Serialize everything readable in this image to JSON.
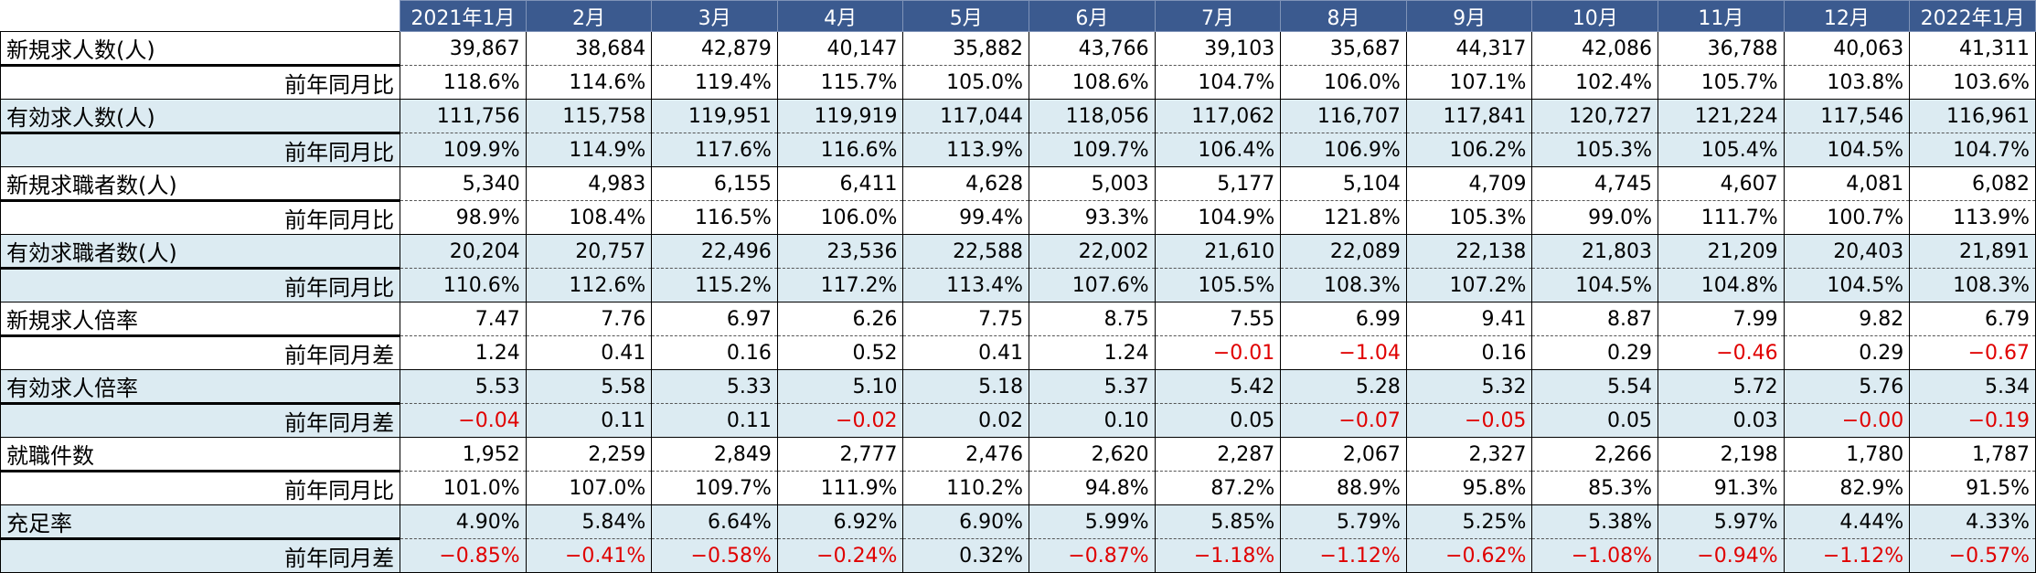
{
  "headers": [
    "2021年1月",
    "2月",
    "3月",
    "4月",
    "5月",
    "6月",
    "7月",
    "8月",
    "9月",
    "10月",
    "11月",
    "12月",
    "2022年1月"
  ],
  "groups": [
    {
      "label": "新規求人数(人)",
      "values": [
        "39,867",
        "38,684",
        "42,879",
        "40,147",
        "35,882",
        "43,766",
        "39,103",
        "35,687",
        "44,317",
        "42,086",
        "36,788",
        "40,063",
        "41,311"
      ],
      "sub_label": "前年同月比",
      "sub_values": [
        "118.6%",
        "114.6%",
        "119.4%",
        "115.7%",
        "105.0%",
        "108.6%",
        "104.7%",
        "106.0%",
        "107.1%",
        "102.4%",
        "105.7%",
        "103.8%",
        "103.6%"
      ],
      "shaded": false
    },
    {
      "label": "有効求人数(人)",
      "values": [
        "111,756",
        "115,758",
        "119,951",
        "119,919",
        "117,044",
        "118,056",
        "117,062",
        "116,707",
        "117,841",
        "120,727",
        "121,224",
        "117,546",
        "116,961"
      ],
      "sub_label": "前年同月比",
      "sub_values": [
        "109.9%",
        "114.9%",
        "117.6%",
        "116.6%",
        "113.9%",
        "109.7%",
        "106.4%",
        "106.9%",
        "106.2%",
        "105.3%",
        "105.4%",
        "104.5%",
        "104.7%"
      ],
      "shaded": true
    },
    {
      "label": "新規求職者数(人)",
      "values": [
        "5,340",
        "4,983",
        "6,155",
        "6,411",
        "4,628",
        "5,003",
        "5,177",
        "5,104",
        "4,709",
        "4,745",
        "4,607",
        "4,081",
        "6,082"
      ],
      "sub_label": "前年同月比",
      "sub_values": [
        "98.9%",
        "108.4%",
        "116.5%",
        "106.0%",
        "99.4%",
        "93.3%",
        "104.9%",
        "121.8%",
        "105.3%",
        "99.0%",
        "111.7%",
        "100.7%",
        "113.9%"
      ],
      "shaded": false
    },
    {
      "label": "有効求職者数(人)",
      "values": [
        "20,204",
        "20,757",
        "22,496",
        "23,536",
        "22,588",
        "22,002",
        "21,610",
        "22,089",
        "22,138",
        "21,803",
        "21,209",
        "20,403",
        "21,891"
      ],
      "sub_label": "前年同月比",
      "sub_values": [
        "110.6%",
        "112.6%",
        "115.2%",
        "117.2%",
        "113.4%",
        "107.6%",
        "105.5%",
        "108.3%",
        "107.2%",
        "104.5%",
        "104.8%",
        "104.5%",
        "108.3%"
      ],
      "shaded": true
    },
    {
      "label": "新規求人倍率",
      "values": [
        "7.47",
        "7.76",
        "6.97",
        "6.26",
        "7.75",
        "8.75",
        "7.55",
        "6.99",
        "9.41",
        "8.87",
        "7.99",
        "9.82",
        "6.79"
      ],
      "sub_label": "前年同月差",
      "sub_values": [
        "1.24",
        "0.41",
        "0.16",
        "0.52",
        "0.41",
        "1.24",
        "−0.01",
        "−1.04",
        "0.16",
        "0.29",
        "−0.46",
        "0.29",
        "−0.67"
      ],
      "shaded": false
    },
    {
      "label": "有効求人倍率",
      "values": [
        "5.53",
        "5.58",
        "5.33",
        "5.10",
        "5.18",
        "5.37",
        "5.42",
        "5.28",
        "5.32",
        "5.54",
        "5.72",
        "5.76",
        "5.34"
      ],
      "sub_label": "前年同月差",
      "sub_values": [
        "−0.04",
        "0.11",
        "0.11",
        "−0.02",
        "0.02",
        "0.10",
        "0.05",
        "−0.07",
        "−0.05",
        "0.05",
        "0.03",
        "−0.00",
        "−0.19"
      ],
      "shaded": true
    },
    {
      "label": "就職件数",
      "values": [
        "1,952",
        "2,259",
        "2,849",
        "2,777",
        "2,476",
        "2,620",
        "2,287",
        "2,067",
        "2,327",
        "2,266",
        "2,198",
        "1,780",
        "1,787"
      ],
      "sub_label": "前年同月比",
      "sub_values": [
        "101.0%",
        "107.0%",
        "109.7%",
        "111.9%",
        "110.2%",
        "94.8%",
        "87.2%",
        "88.9%",
        "95.8%",
        "85.3%",
        "91.3%",
        "82.9%",
        "91.5%"
      ],
      "shaded": false
    },
    {
      "label": "充足率",
      "values": [
        "4.90%",
        "5.84%",
        "6.64%",
        "6.92%",
        "6.90%",
        "5.99%",
        "5.85%",
        "5.79%",
        "5.25%",
        "5.38%",
        "5.97%",
        "4.44%",
        "4.33%"
      ],
      "sub_label": "前年同月差",
      "sub_values": [
        "−0.85%",
        "−0.41%",
        "−0.58%",
        "−0.24%",
        "0.32%",
        "−0.87%",
        "−1.18%",
        "−1.12%",
        "−0.62%",
        "−1.08%",
        "−0.94%",
        "−1.12%",
        "−0.57%"
      ],
      "shaded": true
    }
  ],
  "colors": {
    "header_bg": "#3b5a8f",
    "shade": "#dcebf2",
    "negative": "#e00000"
  }
}
